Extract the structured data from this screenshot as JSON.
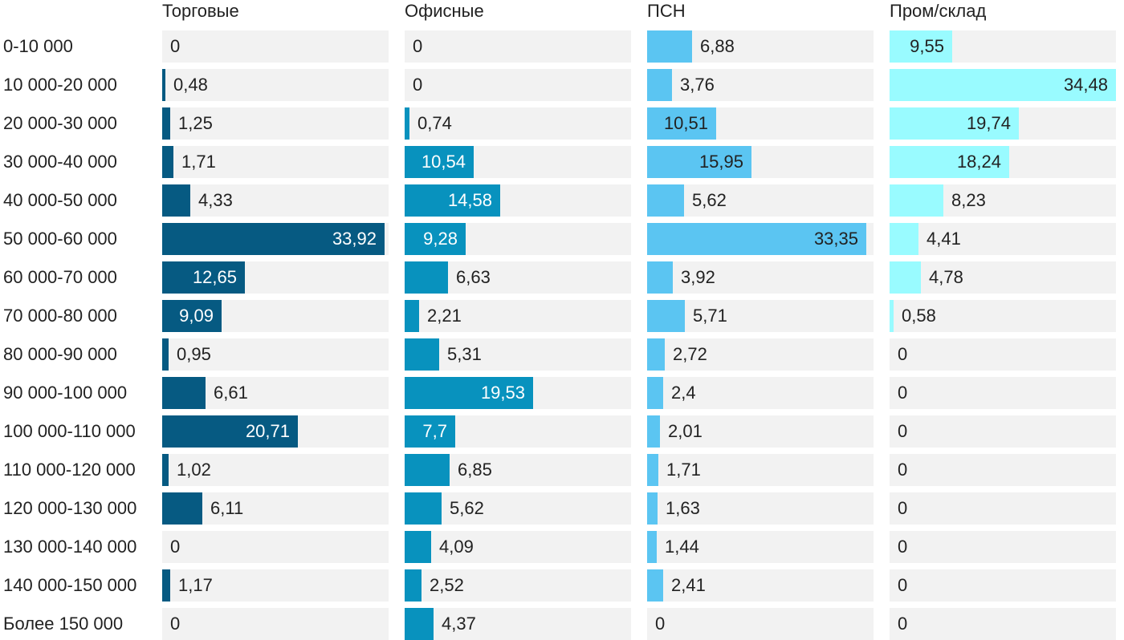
{
  "chart_data": {
    "type": "bar",
    "orientation": "horizontal",
    "layout": "small-multiples",
    "xlim": [
      0,
      35
    ],
    "grid": false,
    "legend": "none",
    "categories": [
      "0-10 000",
      "10 000-20 000",
      "20 000-30 000",
      "30 000-40 000",
      "40 000-50 000",
      "50 000-60 000",
      "60 000-70 000",
      "70 000-80 000",
      "80 000-90 000",
      "90 000-100 000",
      "100 000-110 000",
      "110 000-120 000",
      "120 000-130 000",
      "130 000-140 000",
      "140 000-150 000",
      "Более 150 000"
    ],
    "series": [
      {
        "name": "Торговые",
        "color": "#065a82",
        "label_color_inside": "#ffffff",
        "values": [
          0,
          0.48,
          1.25,
          1.71,
          4.33,
          33.92,
          12.65,
          9.09,
          0.95,
          6.61,
          20.71,
          1.02,
          6.11,
          0,
          1.17,
          0
        ],
        "labels": [
          "0",
          "0,48",
          "1,25",
          "1,71",
          "4,33",
          "33,92",
          "12,65",
          "9,09",
          "0,95",
          "6,61",
          "20,71",
          "1,02",
          "6,11",
          "0",
          "1,17",
          "0"
        ]
      },
      {
        "name": "Офисные",
        "color": "#0892be",
        "label_color_inside": "#ffffff",
        "values": [
          0,
          0,
          0.74,
          10.54,
          14.58,
          9.28,
          6.63,
          2.21,
          5.31,
          19.53,
          7.7,
          6.85,
          5.62,
          4.09,
          2.52,
          4.37
        ],
        "labels": [
          "0",
          "0",
          "0,74",
          "10,54",
          "14,58",
          "9,28",
          "6,63",
          "2,21",
          "5,31",
          "19,53",
          "7,7",
          "6,85",
          "5,62",
          "4,09",
          "2,52",
          "4,37"
        ]
      },
      {
        "name": "ПСН",
        "color": "#5bc5f2",
        "label_color_inside": "#222222",
        "values": [
          6.88,
          3.76,
          10.51,
          15.95,
          5.62,
          33.35,
          3.92,
          5.71,
          2.72,
          2.4,
          2.01,
          1.71,
          1.63,
          1.44,
          2.41,
          0
        ],
        "labels": [
          "6,88",
          "3,76",
          "10,51",
          "15,95",
          "5,62",
          "33,35",
          "3,92",
          "5,71",
          "2,72",
          "2,4",
          "2,01",
          "1,71",
          "1,63",
          "1,44",
          "2,41",
          "0"
        ]
      },
      {
        "name": "Пром/склад",
        "color": "#99fbff",
        "label_color_inside": "#222222",
        "values": [
          9.55,
          34.48,
          19.74,
          18.24,
          8.23,
          4.41,
          4.78,
          0.58,
          0,
          0,
          0,
          0,
          0,
          0,
          0,
          0
        ],
        "labels": [
          "9,55",
          "34,48",
          "19,74",
          "18,24",
          "8,23",
          "4,41",
          "4,78",
          "0,58",
          "0",
          "0",
          "0",
          "0",
          "0",
          "0",
          "0",
          "0"
        ]
      }
    ]
  }
}
